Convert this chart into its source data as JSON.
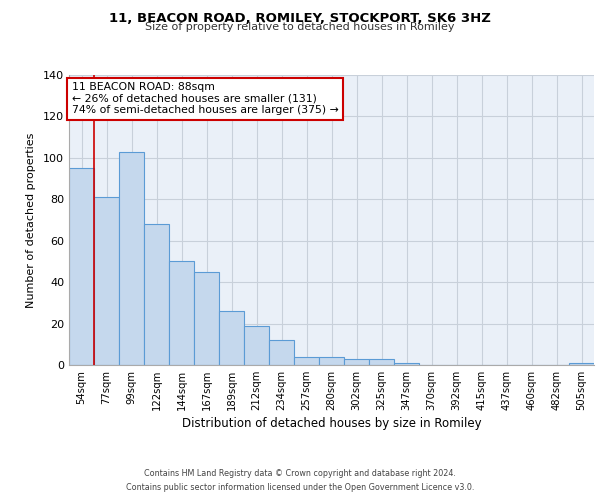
{
  "title": "11, BEACON ROAD, ROMILEY, STOCKPORT, SK6 3HZ",
  "subtitle": "Size of property relative to detached houses in Romiley",
  "xlabel": "Distribution of detached houses by size in Romiley",
  "ylabel": "Number of detached properties",
  "bin_labels": [
    "54sqm",
    "77sqm",
    "99sqm",
    "122sqm",
    "144sqm",
    "167sqm",
    "189sqm",
    "212sqm",
    "234sqm",
    "257sqm",
    "280sqm",
    "302sqm",
    "325sqm",
    "347sqm",
    "370sqm",
    "392sqm",
    "415sqm",
    "437sqm",
    "460sqm",
    "482sqm",
    "505sqm"
  ],
  "bar_heights": [
    95,
    81,
    103,
    68,
    50,
    45,
    26,
    19,
    12,
    4,
    4,
    3,
    3,
    1,
    0,
    0,
    0,
    0,
    0,
    0,
    1
  ],
  "bar_color": "#c5d8ed",
  "bar_edgecolor": "#5b9bd5",
  "bar_linewidth": 0.8,
  "vline_color": "#cc0000",
  "vline_x": 0.5,
  "annotation_title": "11 BEACON ROAD: 88sqm",
  "annotation_line1": "← 26% of detached houses are smaller (131)",
  "annotation_line2": "74% of semi-detached houses are larger (375) →",
  "annotation_box_color": "#cc0000",
  "ylim": [
    0,
    140
  ],
  "yticks": [
    0,
    20,
    40,
    60,
    80,
    100,
    120,
    140
  ],
  "grid_color": "#c8d0da",
  "bg_color": "#eaf0f8",
  "footer_line1": "Contains HM Land Registry data © Crown copyright and database right 2024.",
  "footer_line2": "Contains public sector information licensed under the Open Government Licence v3.0."
}
